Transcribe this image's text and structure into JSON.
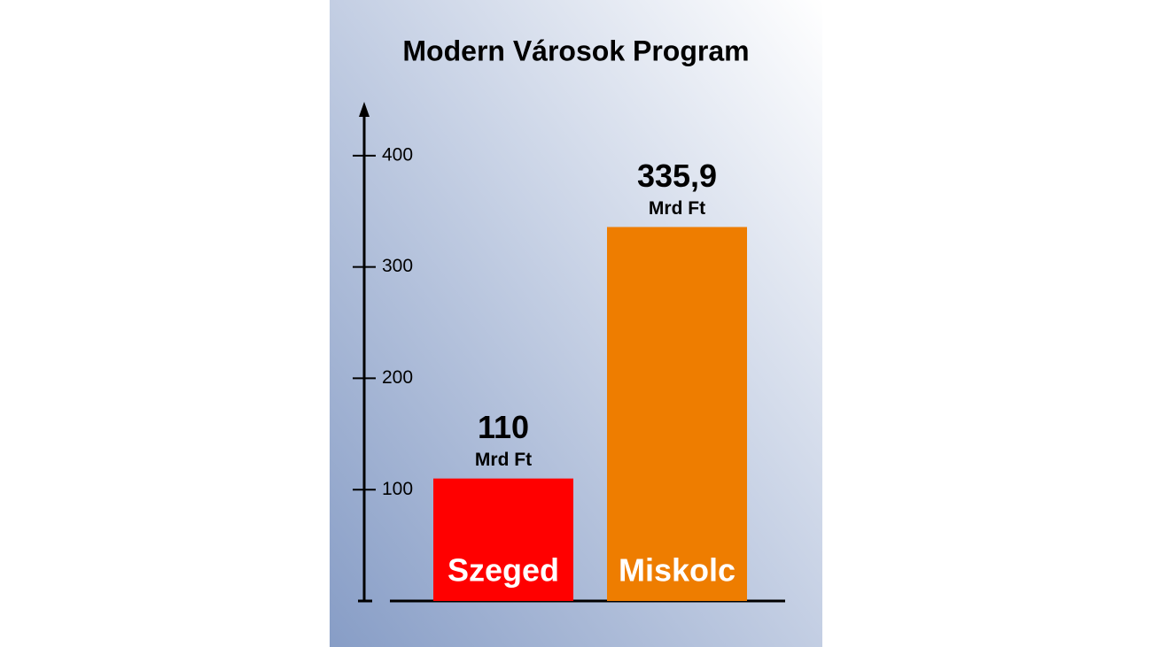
{
  "chart_data": {
    "type": "bar",
    "title": "Modern Városok Program",
    "categories": [
      "Szeged",
      "Miskolc"
    ],
    "values": [
      110,
      335.9
    ],
    "value_labels": [
      "110",
      "335,9"
    ],
    "unit": "Mrd Ft",
    "colors": [
      "#ff0000",
      "#ee7d00"
    ],
    "ylim": [
      0,
      446
    ],
    "yticks": [
      100,
      200,
      300,
      400
    ]
  }
}
